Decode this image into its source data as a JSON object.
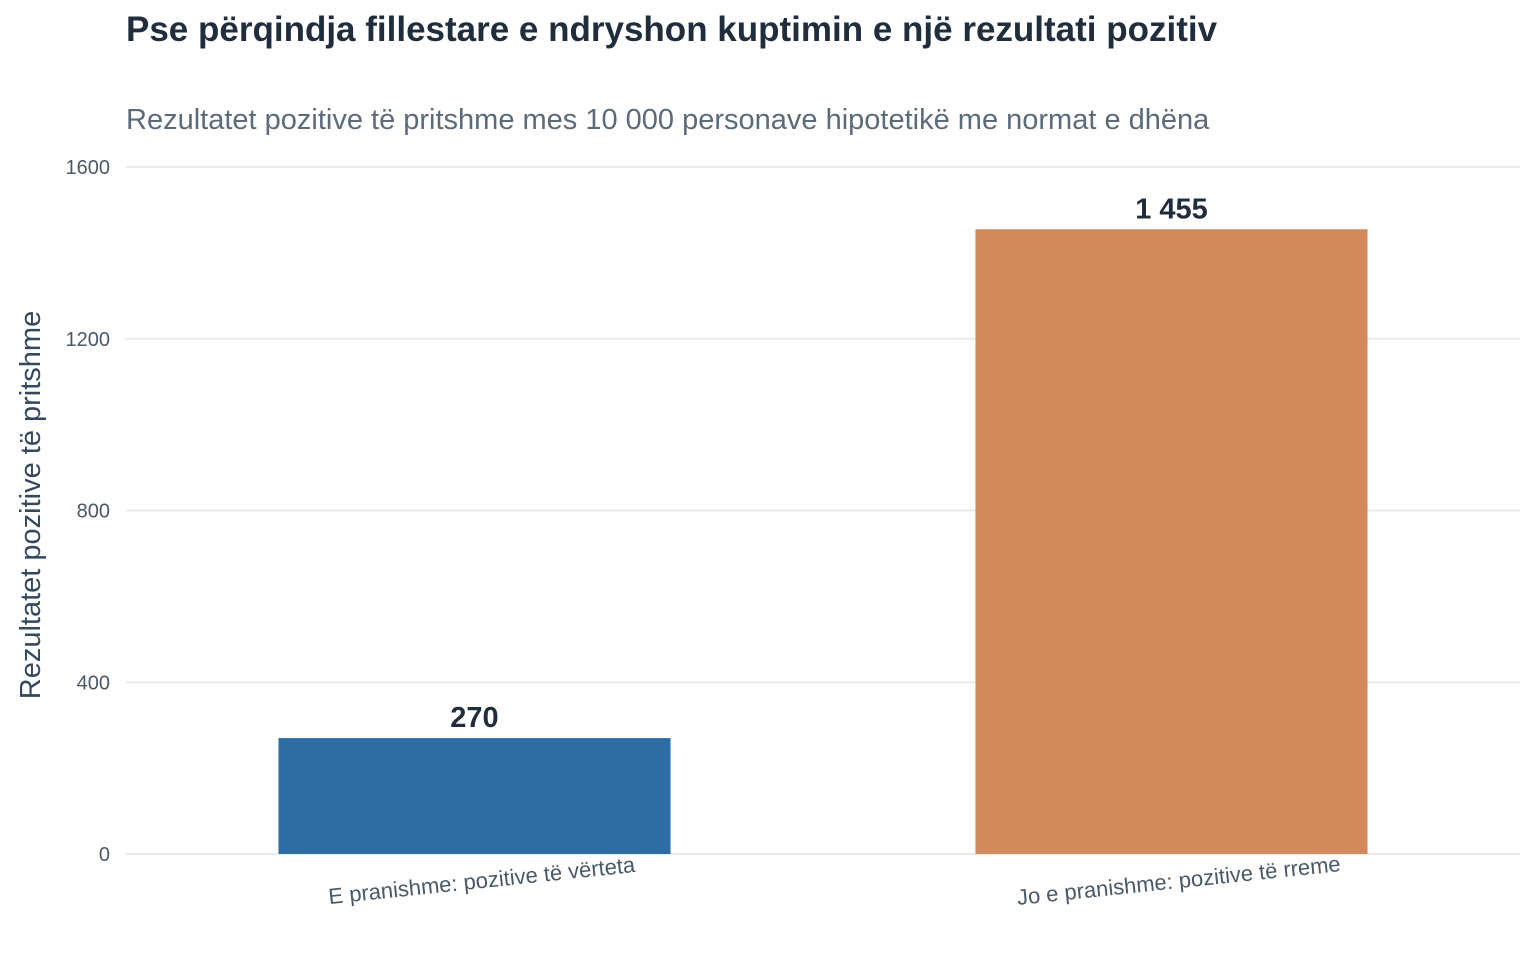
{
  "chart_data": {
    "type": "bar",
    "title": "Pse përqindja fillestare e ndryshon kuptimin e një rezultati pozitiv",
    "subtitle": "Rezultatet pozitive të pritshme mes 10 000 personave hipotetikë me normat e dhëna",
    "xlabel": "",
    "ylabel": "Rezultatet pozitive të pritshme",
    "categories": [
      "E pranishme: pozitive të vërteta",
      "Jo e pranishme: pozitive të rreme"
    ],
    "values": [
      270,
      1455
    ],
    "value_labels": [
      "270",
      "1 455"
    ],
    "colors": [
      "#2e6da4",
      "#d2895b"
    ],
    "ylim": [
      0,
      1600
    ],
    "yticks": [
      0,
      400,
      800,
      1200,
      1600
    ],
    "ytick_labels": [
      "0",
      "400",
      "800",
      "1200",
      "1600"
    ],
    "grid": "horizontal",
    "legend": "none"
  }
}
